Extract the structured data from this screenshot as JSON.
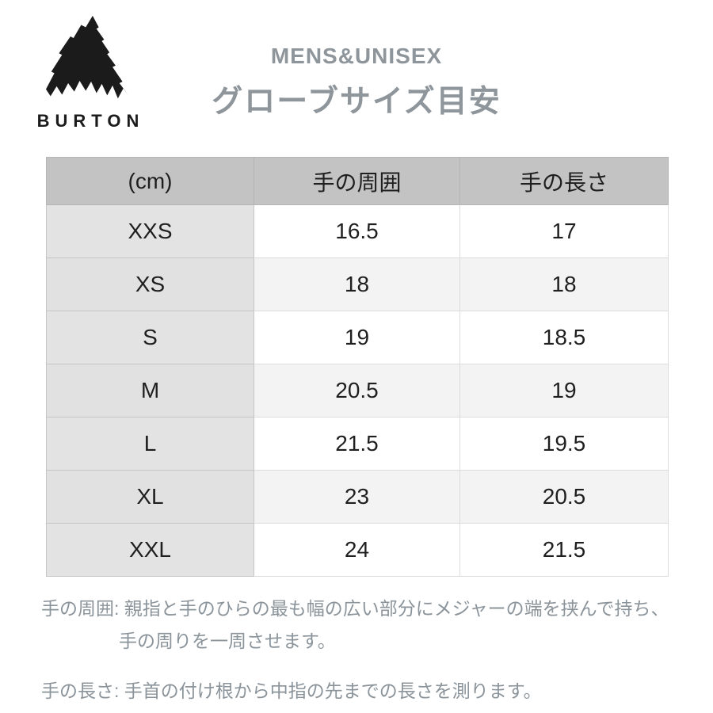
{
  "logo": {
    "brand": "BURTON",
    "icon": "mountain-icon"
  },
  "header": {
    "subtitle": "MENS&UNISEX",
    "title": "グローブサイズ目安"
  },
  "table": {
    "columns": [
      "(cm)",
      "手の周囲",
      "手の長さ"
    ],
    "rows": [
      {
        "size": "XXS",
        "circumference": "16.5",
        "length": "17"
      },
      {
        "size": "XS",
        "circumference": "18",
        "length": "18"
      },
      {
        "size": "S",
        "circumference": "19",
        "length": "18.5"
      },
      {
        "size": "M",
        "circumference": "20.5",
        "length": "19"
      },
      {
        "size": "L",
        "circumference": "21.5",
        "length": "19.5"
      },
      {
        "size": "XL",
        "circumference": "23",
        "length": "20.5"
      },
      {
        "size": "XXL",
        "circumference": "24",
        "length": "21.5"
      }
    ]
  },
  "notes": {
    "circumference": {
      "label": "手の周囲:",
      "text": "親指と手のひらの最も幅の広い部分にメジャーの端を挟んで持ち、",
      "text2": "手の周りを一周させます。"
    },
    "length": {
      "label": "手の長さ:",
      "text": "手首の付け根から中指の先までの長さを測ります。"
    }
  },
  "colors": {
    "title_gray": "#8e969c",
    "note_gray": "#8b949b",
    "header_bg": "#c3c3c3",
    "size_col_bg": "#e3e3e3",
    "stripe_bg": "#f3f3f3",
    "text_black": "#1f1f1f"
  },
  "chart_data": {
    "type": "table",
    "title": "グローブサイズ目安",
    "subtitle": "MENS&UNISEX",
    "unit": "cm",
    "columns": [
      "(cm)",
      "手の周囲",
      "手の長さ"
    ],
    "rows": [
      [
        "XXS",
        16.5,
        17
      ],
      [
        "XS",
        18,
        18
      ],
      [
        "S",
        19,
        18.5
      ],
      [
        "M",
        20.5,
        19
      ],
      [
        "L",
        21.5,
        19.5
      ],
      [
        "XL",
        23,
        20.5
      ],
      [
        "XXL",
        24,
        21.5
      ]
    ]
  }
}
